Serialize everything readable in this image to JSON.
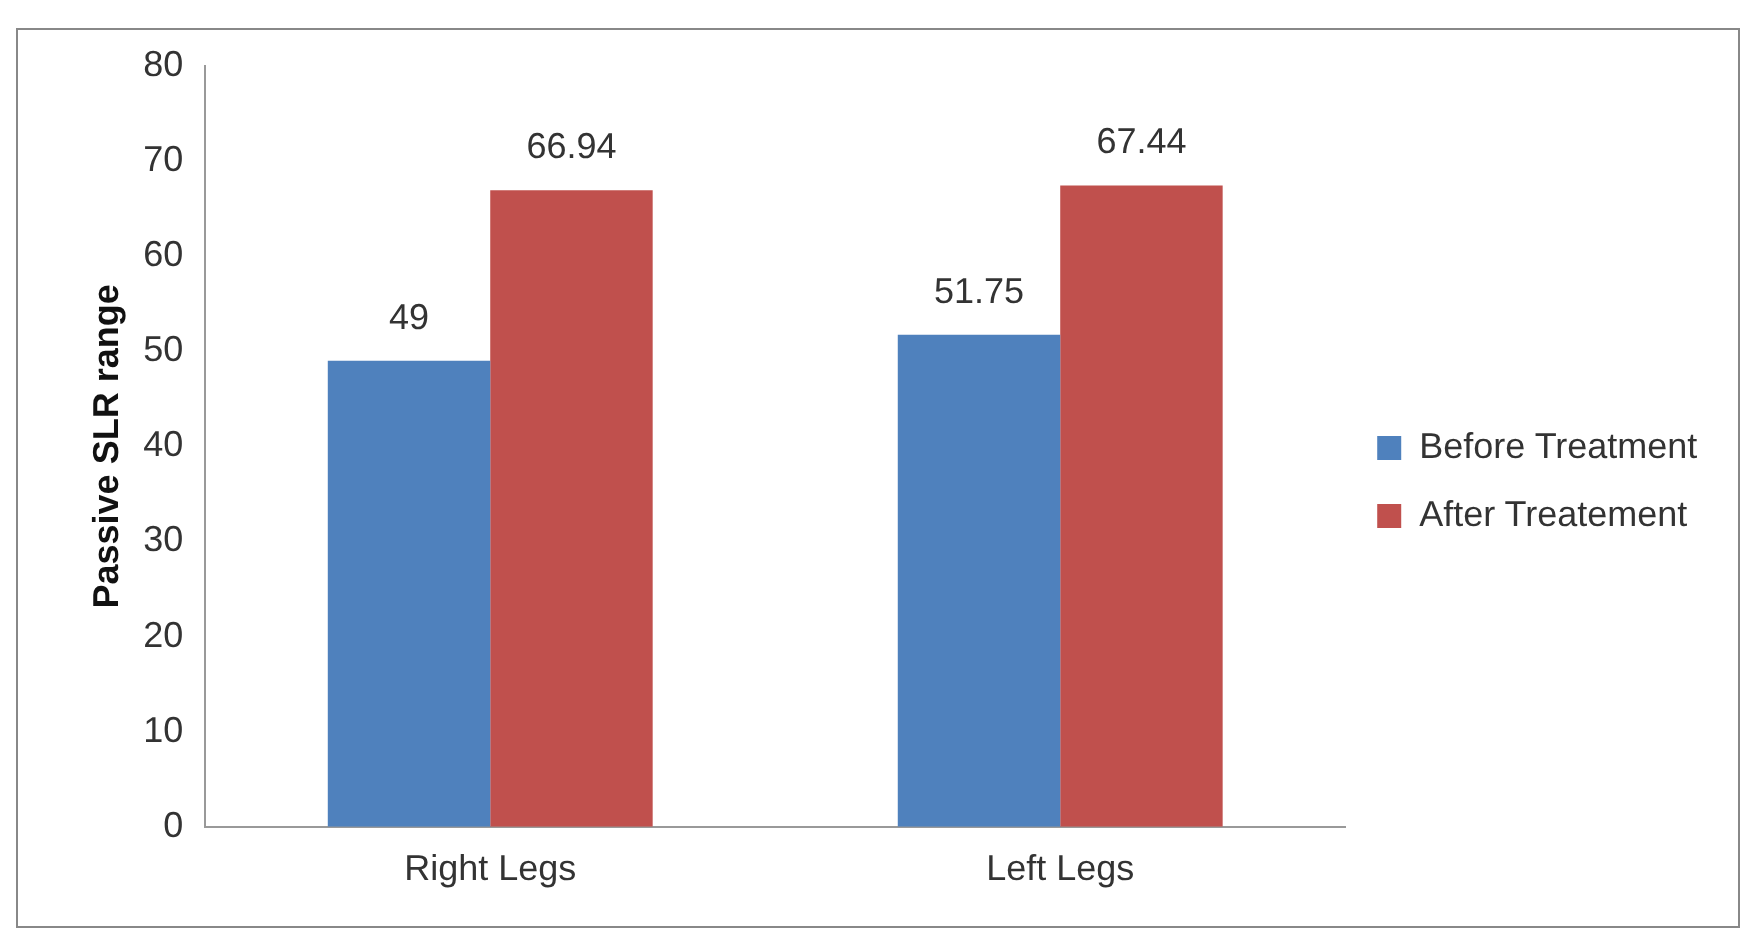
{
  "chart_data": {
    "type": "bar",
    "ylabel": "Passive SLR range",
    "categories": [
      "Right Legs",
      "Left Legs"
    ],
    "series": [
      {
        "name": "Before Treatment",
        "color": "#4f81bd",
        "values": [
          49,
          51.75
        ]
      },
      {
        "name": "After Treatement",
        "color": "#c0504d",
        "values": [
          66.94,
          67.44
        ]
      }
    ],
    "ylim": [
      0,
      80
    ],
    "yticks": [
      0,
      10,
      20,
      30,
      40,
      50,
      60,
      70,
      80
    ],
    "grid": false,
    "legend": "right",
    "data_labels": true
  }
}
